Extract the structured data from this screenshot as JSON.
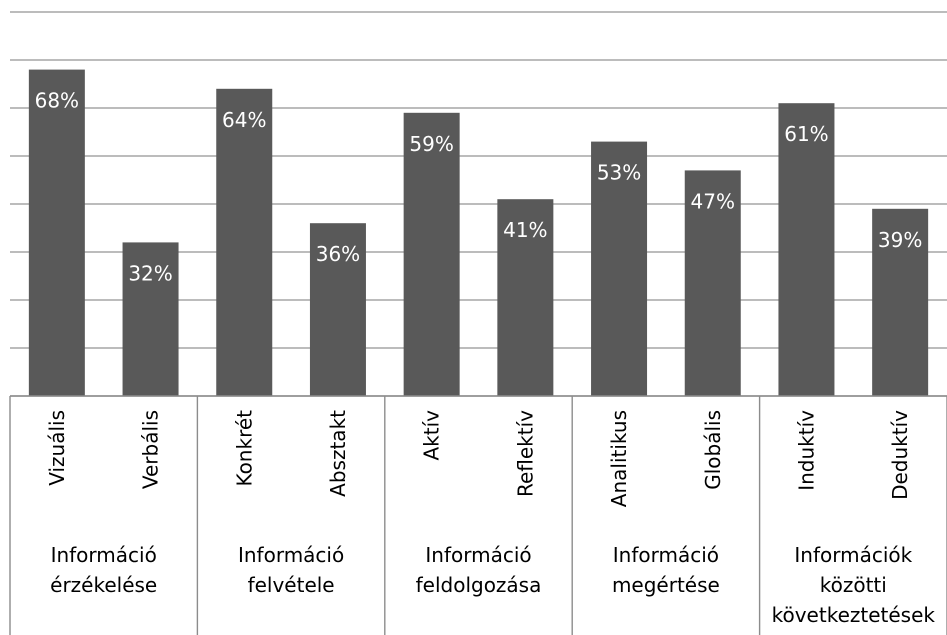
{
  "chart_data": {
    "type": "bar",
    "categories": [
      "Vizuális",
      "Verbális",
      "Konkrét",
      "Absztakt",
      "Aktív",
      "Reflektív",
      "Analitikus",
      "Globális",
      "Induktív",
      "Deduktív"
    ],
    "values": [
      68,
      32,
      64,
      36,
      59,
      41,
      53,
      47,
      61,
      39
    ],
    "data_labels": [
      "68%",
      "32%",
      "64%",
      "36%",
      "59%",
      "41%",
      "53%",
      "47%",
      "61%",
      "39%"
    ],
    "groups": [
      {
        "lines": [
          "Információ",
          "érzékelése"
        ]
      },
      {
        "lines": [
          "Információ",
          "felvétele"
        ]
      },
      {
        "lines": [
          "Információ",
          "feldolgozása"
        ]
      },
      {
        "lines": [
          "Információ",
          "megértése"
        ]
      },
      {
        "lines": [
          "Információk",
          "közötti",
          "következtetések"
        ]
      }
    ],
    "ylim": [
      0,
      80
    ],
    "grid": true,
    "bar_color": "#595959"
  }
}
